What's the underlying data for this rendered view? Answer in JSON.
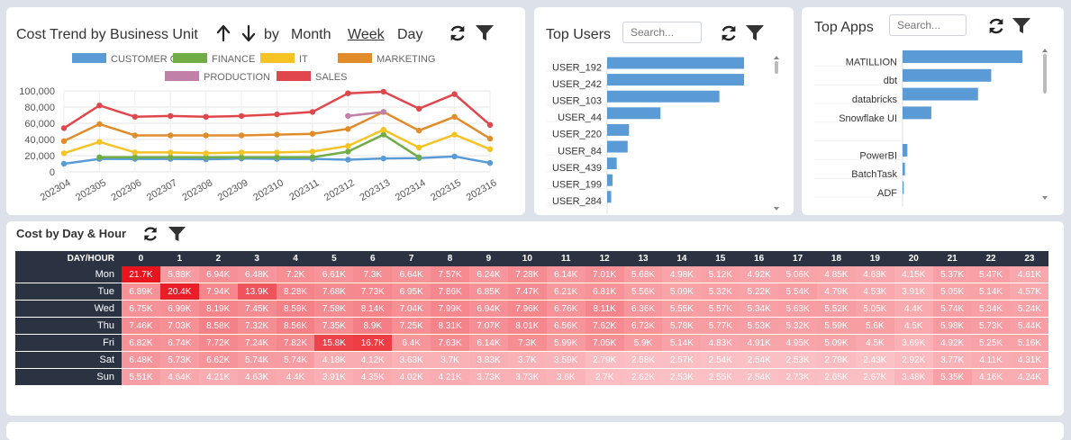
{
  "cost_trend": {
    "title": "Cost Trend by Business Unit",
    "by_label": "by",
    "options": [
      "Month",
      "Week",
      "Day"
    ],
    "active_option": "Week",
    "chart_data": {
      "type": "line",
      "x": [
        "202304",
        "202305",
        "202306",
        "202307",
        "202308",
        "202309",
        "202310",
        "202311",
        "202312",
        "202313",
        "202314",
        "202315",
        "202316"
      ],
      "ylim": [
        0,
        100000
      ],
      "yticks": [
        "0",
        "20,000",
        "40,000",
        "60,000",
        "80,000",
        "100,000"
      ],
      "series": [
        {
          "name": "CUSTOMER CARE",
          "color": "#5b9bd5",
          "values": [
            10000,
            16000,
            16000,
            16000,
            15500,
            16500,
            16000,
            16000,
            15000,
            16500,
            17000,
            19000,
            11000
          ]
        },
        {
          "name": "FINANCE",
          "color": "#70ad47",
          "values": [
            null,
            18000,
            18000,
            18000,
            18000,
            18000,
            18000,
            18000,
            25000,
            46000,
            18000,
            null,
            null
          ]
        },
        {
          "name": "IT",
          "color": "#f5c324",
          "values": [
            23000,
            37000,
            24000,
            24000,
            23000,
            24000,
            24000,
            25000,
            32000,
            52000,
            30000,
            46000,
            28000
          ]
        },
        {
          "name": "MARKETING",
          "color": "#e08c2a",
          "values": [
            38000,
            59000,
            45000,
            45000,
            45000,
            45000,
            46000,
            47000,
            53000,
            74000,
            51000,
            68000,
            41000
          ]
        },
        {
          "name": "PRODUCTION",
          "color": "#c080a8",
          "values": [
            null,
            null,
            null,
            null,
            null,
            null,
            null,
            null,
            69000,
            74000,
            null,
            null,
            null
          ]
        },
        {
          "name": "SALES",
          "color": "#e0474c",
          "values": [
            54000,
            82000,
            68000,
            69000,
            68000,
            69000,
            71000,
            74000,
            97000,
            99000,
            78000,
            96000,
            58000
          ]
        }
      ]
    }
  },
  "top_users": {
    "title": "Top Users",
    "search_placeholder": "Search...",
    "chart_data": {
      "type": "bar",
      "categories": [
        "USER_192",
        "USER_242",
        "USER_103",
        "USER_44",
        "USER_220",
        "USER_84",
        "USER_439",
        "USER_199",
        "USER_284"
      ],
      "values": [
        100,
        100,
        82,
        39,
        16,
        15,
        7,
        4,
        3
      ]
    }
  },
  "top_apps": {
    "title": "Top Apps",
    "search_placeholder": "Search...",
    "chart_data": {
      "type": "bar",
      "categories": [
        "MATILLION",
        "dbt",
        "databricks",
        "Snowflake UI",
        "",
        "PowerBI",
        "BatchTask",
        "ADF"
      ],
      "values": [
        100,
        74,
        63,
        24,
        0,
        4,
        2,
        1
      ]
    }
  },
  "heatmap": {
    "title": "Cost by Day & Hour",
    "corner": "DAY/HOUR",
    "hours": [
      "0",
      "1",
      "2",
      "3",
      "4",
      "5",
      "6",
      "7",
      "8",
      "9",
      "10",
      "11",
      "12",
      "13",
      "14",
      "15",
      "16",
      "17",
      "18",
      "19",
      "20",
      "21",
      "22",
      "23"
    ],
    "rows": [
      {
        "day": "Mon",
        "values": [
          "21.7K",
          "5.88K",
          "6.94K",
          "6.48K",
          "7.2K",
          "6.61K",
          "7.3K",
          "6.64K",
          "7.57K",
          "6.24K",
          "7.28K",
          "6.14K",
          "7.01K",
          "5.68K",
          "4.98K",
          "5.12K",
          "4.92K",
          "5.06K",
          "4.85K",
          "4.68K",
          "4.15K",
          "5.37K",
          "5.47K",
          "4.61K"
        ]
      },
      {
        "day": "Tue",
        "values": [
          "6.89K",
          "20.4K",
          "7.94K",
          "13.9K",
          "8.28K",
          "7.68K",
          "7.73K",
          "6.95K",
          "7.86K",
          "6.85K",
          "7.47K",
          "6.21K",
          "6.81K",
          "5.56K",
          "5.09K",
          "5.32K",
          "5.22K",
          "5.54K",
          "4.79K",
          "4.53K",
          "3.91K",
          "5.05K",
          "5.14K",
          "4.57K"
        ]
      },
      {
        "day": "Wed",
        "values": [
          "6.75K",
          "6.99K",
          "8.19K",
          "7.45K",
          "8.59K",
          "7.58K",
          "8.14K",
          "7.04K",
          "7.99K",
          "6.94K",
          "7.96K",
          "6.76K",
          "8.11K",
          "6.36K",
          "5.55K",
          "5.57K",
          "5.34K",
          "5.63K",
          "5.52K",
          "5.05K",
          "4.4K",
          "5.74K",
          "5.34K",
          "5.24K"
        ]
      },
      {
        "day": "Thu",
        "values": [
          "7.46K",
          "7.03K",
          "8.58K",
          "7.32K",
          "8.56K",
          "7.35K",
          "8.9K",
          "7.25K",
          "8.31K",
          "7.07K",
          "8.01K",
          "6.56K",
          "7.62K",
          "6.73K",
          "5.78K",
          "5.77K",
          "5.53K",
          "5.32K",
          "5.59K",
          "5.6K",
          "4.5K",
          "5.98K",
          "5.73K",
          "5.44K"
        ]
      },
      {
        "day": "Fri",
        "values": [
          "6.82K",
          "6.74K",
          "7.72K",
          "7.24K",
          "7.82K",
          "15.8K",
          "16.7K",
          "6.4K",
          "7.63K",
          "6.14K",
          "7.3K",
          "5.99K",
          "7.05K",
          "5.9K",
          "5.14K",
          "4.83K",
          "4.91K",
          "4.95K",
          "5.09K",
          "4.5K",
          "3.69K",
          "4.92K",
          "5.25K",
          "5.16K"
        ]
      },
      {
        "day": "Sat",
        "values": [
          "6.48K",
          "5.73K",
          "6.62K",
          "5.74K",
          "5.74K",
          "4.18K",
          "4.12K",
          "3.63K",
          "3.7K",
          "3.83K",
          "3.7K",
          "3.59K",
          "2.79K",
          "2.58K",
          "2.57K",
          "2.54K",
          "2.54K",
          "2.53K",
          "2.78K",
          "2.43K",
          "2.92K",
          "3.77K",
          "4.11K",
          "4.31K"
        ]
      },
      {
        "day": "Sun",
        "values": [
          "5.51K",
          "4.64K",
          "4.21K",
          "4.63K",
          "4.4K",
          "3.91K",
          "4.35K",
          "4.02K",
          "4.21K",
          "3.73K",
          "3.73K",
          "3.6K",
          "2.7K",
          "2.62K",
          "2.53K",
          "2.55K",
          "2.54K",
          "2.73K",
          "2.65K",
          "2.67K",
          "3.48K",
          "5.35K",
          "4.16K",
          "4.24K"
        ]
      }
    ]
  },
  "colors": {
    "bar": "#5b9bd5",
    "heat_dark": "#2b3342",
    "icon": "#222222"
  }
}
